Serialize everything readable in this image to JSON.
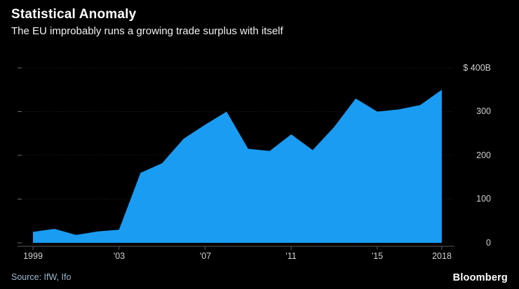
{
  "header": {
    "title": "Statistical Anomaly",
    "subtitle": "The EU improbably runs a growing trade surplus with itself"
  },
  "chart_data": {
    "type": "area",
    "title": "Statistical Anomaly",
    "subtitle": "The EU improbably runs a growing trade surplus with itself",
    "unit": "billions of US dollars",
    "x": [
      1999,
      2000,
      2001,
      2002,
      2003,
      2004,
      2005,
      2006,
      2007,
      2008,
      2009,
      2010,
      2011,
      2012,
      2013,
      2014,
      2015,
      2016,
      2017,
      2018
    ],
    "values": [
      25,
      32,
      18,
      26,
      30,
      160,
      182,
      238,
      270,
      300,
      215,
      210,
      248,
      212,
      265,
      330,
      300,
      305,
      315,
      350
    ],
    "xlabel": "",
    "ylabel": "$B",
    "ylim": [
      0,
      400
    ],
    "grid": true,
    "legend_position": "none",
    "y_ticks": [
      {
        "value": 400,
        "label": "$ 400B"
      },
      {
        "value": 300,
        "label": "300"
      },
      {
        "value": 200,
        "label": "200"
      },
      {
        "value": 100,
        "label": "100"
      },
      {
        "value": 0,
        "label": "0"
      }
    ],
    "x_ticks": [
      {
        "year": 1999,
        "label": "1999"
      },
      {
        "year": 2003,
        "label": "'03"
      },
      {
        "year": 2007,
        "label": "'07"
      },
      {
        "year": 2011,
        "label": "'11"
      },
      {
        "year": 2015,
        "label": "'15"
      },
      {
        "year": 2018,
        "label": "2018"
      }
    ]
  },
  "colors": {
    "background": "#000000",
    "area_fill": "#1a9cf2",
    "axis_line": "#5a5a5a",
    "grid_dotted": "#262626",
    "tick": "#6a6a6a"
  },
  "footer": {
    "source": "Source: IfW, Ifo",
    "brand": "Bloomberg"
  }
}
